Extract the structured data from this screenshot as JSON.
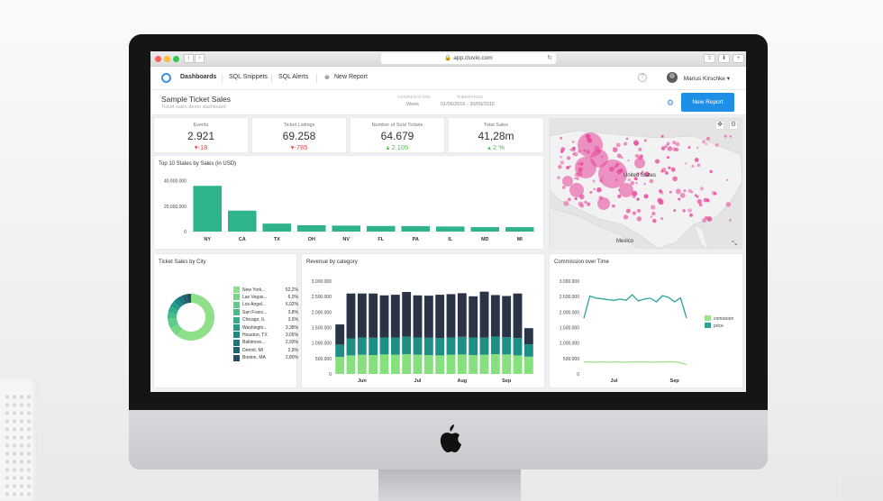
{
  "browser": {
    "url": "app.cluvio.com"
  },
  "nav": {
    "items": [
      {
        "label": "Dashboards"
      },
      {
        "label": "SQL Snippets"
      },
      {
        "label": "SQL Alerts"
      },
      {
        "label": "New Report"
      }
    ],
    "help": "?",
    "user": "Marius Kirschke"
  },
  "page": {
    "title": "Sample Ticket Sales",
    "subtitle": "Ticket sales demo dashboard",
    "aggregation_label": "AGGREGATION",
    "aggregation_value": "Week",
    "timerange_label": "TIMERANGE",
    "timerange_value": "01/06/2016 - 30/09/2016",
    "new_report_button": "New Report"
  },
  "kpis": [
    {
      "title": "Events",
      "value": "2.921",
      "delta": "-18",
      "dir": "down"
    },
    {
      "title": "Ticket Listings",
      "value": "69.258",
      "delta": "-785",
      "dir": "down"
    },
    {
      "title": "Number of Sold Tickets",
      "value": "64.679",
      "delta": "2.105",
      "dir": "up"
    },
    {
      "title": "Total Sales",
      "value": "41,28m",
      "delta": "2 %",
      "dir": "up"
    }
  ],
  "map": {
    "labels": [
      "United States",
      "Mexico"
    ]
  },
  "colors": {
    "accent": "#1e8fe6",
    "bar_green": "#2fb38d",
    "stack_dark": "#2b3446",
    "stack_teal": "#1d8f85",
    "stack_light": "#86e07e",
    "line_teal": "#2aa39a",
    "line_light": "#9de38d",
    "map_heat": "#e8449a"
  },
  "chart_data": [
    {
      "id": "top_states",
      "type": "bar",
      "title": "Top 10 States by Sales (in USD)",
      "categories": [
        "NY",
        "CA",
        "TX",
        "OH",
        "NV",
        "FL",
        "PA",
        "IL",
        "MD",
        "MI"
      ],
      "values": [
        36000000,
        16500000,
        6300000,
        5000000,
        4700000,
        4400000,
        4300000,
        4000000,
        3500000,
        3500000
      ],
      "yticks": [
        "40.000.000",
        "20.000.000",
        "0"
      ],
      "ytick_values": [
        40000000,
        20000000,
        0
      ],
      "ylim": [
        0,
        44000000
      ]
    },
    {
      "id": "city_donut",
      "type": "pie",
      "title": "Ticket Sales by City",
      "legend": [
        {
          "name": "New York...",
          "pct": "52,2%",
          "color": "#8ee08a"
        },
        {
          "name": "Las Vegas...",
          "pct": "6,0%",
          "color": "#78d688"
        },
        {
          "name": "Los Angel...",
          "pct": "6,02%",
          "color": "#5fcb88"
        },
        {
          "name": "San Franc...",
          "pct": "3,8%",
          "color": "#45bd8a"
        },
        {
          "name": "Chicago, IL",
          "pct": "3,6%",
          "color": "#2fae8b"
        },
        {
          "name": "Washingto...",
          "pct": "3,38%",
          "color": "#229c8a"
        },
        {
          "name": "Houston, TX",
          "pct": "3,05%",
          "color": "#1b8985"
        },
        {
          "name": "Baltimore...",
          "pct": "2,93%",
          "color": "#1a767c"
        },
        {
          "name": "Detroit, MI",
          "pct": "2,9%",
          "color": "#1d6370"
        },
        {
          "name": "Boston, MA",
          "pct": "2,80%",
          "color": "#1f5063"
        }
      ],
      "values": [
        52.2,
        6.0,
        6.02,
        3.8,
        3.6,
        3.38,
        3.05,
        2.93,
        2.9,
        2.8
      ]
    },
    {
      "id": "revenue_category",
      "type": "bar",
      "stacked": true,
      "title": "Revenue by category",
      "categories": [
        "",
        "",
        "",
        "",
        "",
        "",
        "",
        "",
        "",
        "",
        "",
        "",
        "",
        "",
        "",
        "",
        "",
        ""
      ],
      "xtick_labels": [
        {
          "label": "Jun",
          "index": 2
        },
        {
          "label": "Jul",
          "index": 7
        },
        {
          "label": "Aug",
          "index": 11
        },
        {
          "label": "Sep",
          "index": 15
        }
      ],
      "series": [
        {
          "values": [
            550000,
            600000,
            620000,
            610000,
            630000,
            620000,
            640000,
            620000,
            610000,
            600000,
            620000,
            630000,
            610000,
            620000,
            640000,
            630000,
            600000,
            560000
          ]
        },
        {
          "values": [
            400000,
            550000,
            560000,
            560000,
            550000,
            560000,
            570000,
            560000,
            560000,
            560000,
            560000,
            570000,
            570000,
            560000,
            570000,
            560000,
            560000,
            400000
          ]
        },
        {
          "values": [
            650000,
            1450000,
            1420000,
            1430000,
            1360000,
            1380000,
            1440000,
            1360000,
            1360000,
            1400000,
            1400000,
            1410000,
            1330000,
            1480000,
            1340000,
            1330000,
            1440000,
            520000
          ]
        }
      ],
      "yticks": [
        "3.000.000",
        "2.500.000",
        "2.000.000",
        "1.500.000",
        "1.000.000",
        "500.000",
        "0"
      ],
      "ytick_values": [
        3000000,
        2500000,
        2000000,
        1500000,
        1000000,
        500000,
        0
      ],
      "ylim": [
        0,
        3000000
      ]
    },
    {
      "id": "commission",
      "type": "line",
      "title": "Commission over Time",
      "x": [
        0,
        1,
        2,
        3,
        4,
        5,
        6,
        7,
        8,
        9,
        10,
        11,
        12,
        13,
        14,
        15,
        16,
        17
      ],
      "xtick_labels": [
        {
          "label": "Jul",
          "index": 5
        },
        {
          "label": "Sep",
          "index": 15
        }
      ],
      "series": [
        {
          "name": "comission",
          "values": [
            380000,
            390000,
            380000,
            390000,
            380000,
            390000,
            385000,
            380000,
            390000,
            385000,
            390000,
            380000,
            390000,
            385000,
            395000,
            390000,
            360000,
            300000
          ]
        },
        {
          "name": "price",
          "values": [
            1800000,
            2520000,
            2450000,
            2430000,
            2400000,
            2380000,
            2420000,
            2380000,
            2560000,
            2360000,
            2420000,
            2450000,
            2330000,
            2530000,
            2480000,
            2330000,
            2460000,
            1800000
          ]
        }
      ],
      "yticks": [
        "3.000.000",
        "2.500.000",
        "2.000.000",
        "1.500.000",
        "1.000.000",
        "500.000",
        "0"
      ],
      "ytick_values": [
        3000000,
        2500000,
        2000000,
        1500000,
        1000000,
        500000,
        0
      ],
      "ylim": [
        0,
        3000000
      ]
    }
  ]
}
